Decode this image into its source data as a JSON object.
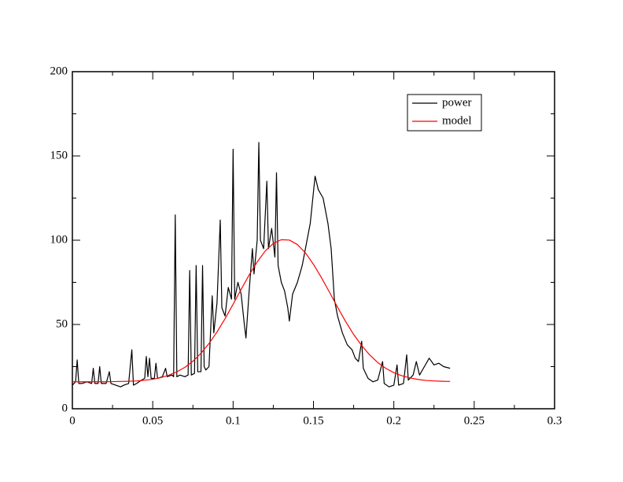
{
  "chart_data": {
    "type": "line",
    "xlim": [
      0,
      0.3
    ],
    "xticks": [
      0,
      0.05,
      0.1,
      0.15,
      0.2,
      0.25,
      0.3
    ],
    "ylim": [
      0,
      200
    ],
    "yticks": [
      0,
      50,
      100,
      150,
      200
    ],
    "legend_position": "upper right",
    "series": [
      {
        "name": "power",
        "color": "#000000",
        "x": [
          0,
          0.002,
          0.003,
          0.004,
          0.006,
          0.009,
          0.012,
          0.013,
          0.014,
          0.016,
          0.017,
          0.018,
          0.021,
          0.023,
          0.024,
          0.027,
          0.03,
          0.032,
          0.035,
          0.037,
          0.038,
          0.04,
          0.043,
          0.045,
          0.046,
          0.047,
          0.048,
          0.049,
          0.051,
          0.052,
          0.053,
          0.056,
          0.058,
          0.059,
          0.062,
          0.063,
          0.064,
          0.065,
          0.067,
          0.07,
          0.072,
          0.073,
          0.074,
          0.076,
          0.077,
          0.078,
          0.08,
          0.081,
          0.082,
          0.083,
          0.085,
          0.087,
          0.088,
          0.09,
          0.092,
          0.093,
          0.095,
          0.097,
          0.099,
          0.1,
          0.101,
          0.103,
          0.105,
          0.107,
          0.108,
          0.11,
          0.112,
          0.113,
          0.115,
          0.116,
          0.117,
          0.119,
          0.121,
          0.122,
          0.124,
          0.126,
          0.127,
          0.128,
          0.13,
          0.132,
          0.134,
          0.135,
          0.137,
          0.14,
          0.143,
          0.146,
          0.148,
          0.151,
          0.153,
          0.156,
          0.159,
          0.161,
          0.163,
          0.165,
          0.168,
          0.171,
          0.174,
          0.176,
          0.178,
          0.18,
          0.181,
          0.184,
          0.187,
          0.19,
          0.193,
          0.194,
          0.197,
          0.2,
          0.202,
          0.203,
          0.206,
          0.208,
          0.209,
          0.212,
          0.214,
          0.216,
          0.219,
          0.222,
          0.225,
          0.228,
          0.231,
          0.235
        ],
        "values": [
          14,
          16,
          29,
          15,
          15,
          16,
          15,
          24,
          15,
          15,
          25,
          15,
          15,
          22,
          15,
          14,
          13,
          14,
          15,
          35,
          14,
          15,
          17,
          18,
          31,
          19,
          30,
          18,
          18,
          27,
          18,
          19,
          24,
          19,
          20,
          19,
          115,
          19,
          20,
          19,
          20,
          82,
          20,
          21,
          85,
          22,
          22,
          85,
          25,
          23,
          25,
          67,
          45,
          63,
          112,
          60,
          55,
          72,
          65,
          154,
          65,
          75,
          68,
          50,
          42,
          70,
          95,
          80,
          100,
          158,
          100,
          95,
          135,
          95,
          107,
          90,
          140,
          85,
          75,
          70,
          60,
          52,
          68,
          75,
          85,
          100,
          110,
          138,
          130,
          125,
          110,
          95,
          65,
          55,
          45,
          38,
          35,
          30,
          28,
          40,
          24,
          18,
          16,
          17,
          28,
          15,
          13,
          14,
          26,
          14,
          15,
          32,
          17,
          20,
          28,
          20,
          25,
          30,
          26,
          27,
          25,
          24
        ]
      },
      {
        "name": "model",
        "color": "#ff0000",
        "x": [
          0,
          0.005,
          0.01,
          0.015,
          0.02,
          0.025,
          0.03,
          0.035,
          0.04,
          0.045,
          0.05,
          0.055,
          0.06,
          0.065,
          0.07,
          0.075,
          0.08,
          0.085,
          0.09,
          0.095,
          0.1,
          0.105,
          0.11,
          0.115,
          0.12,
          0.125,
          0.13,
          0.135,
          0.14,
          0.145,
          0.15,
          0.155,
          0.16,
          0.165,
          0.17,
          0.175,
          0.18,
          0.185,
          0.19,
          0.195,
          0.2,
          0.205,
          0.21,
          0.215,
          0.22,
          0.225,
          0.23,
          0.235
        ],
        "values": [
          16.0,
          16.0,
          16.0,
          16.0,
          16.0,
          16.1,
          16.2,
          16.3,
          16.5,
          16.9,
          17.5,
          18.5,
          19.9,
          21.9,
          24.6,
          28.2,
          32.9,
          38.7,
          45.6,
          53.4,
          62.0,
          70.8,
          79.4,
          87.1,
          93.6,
          98.1,
          100.3,
          100.1,
          97.4,
          92.5,
          85.7,
          77.7,
          69.1,
          60.2,
          51.8,
          44.1,
          37.5,
          31.9,
          27.4,
          24.0,
          21.4,
          19.6,
          18.3,
          17.4,
          16.8,
          16.5,
          16.3,
          16.2
        ]
      }
    ]
  }
}
